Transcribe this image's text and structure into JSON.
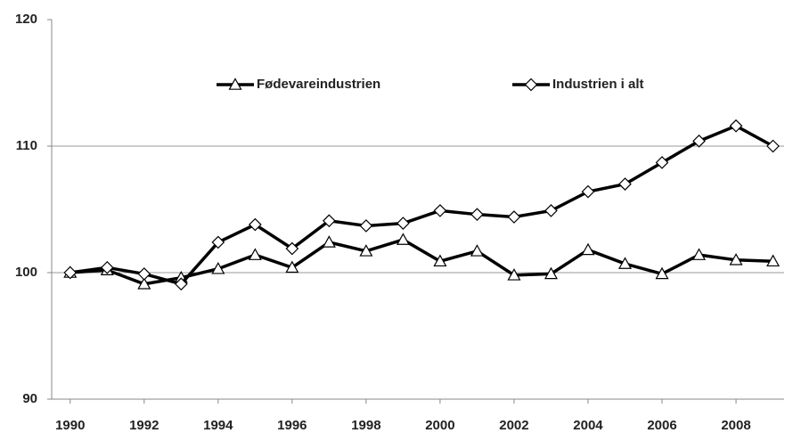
{
  "chart_data": {
    "type": "line",
    "x": [
      1990,
      1991,
      1992,
      1993,
      1994,
      1995,
      1996,
      1997,
      1998,
      1999,
      2000,
      2001,
      2002,
      2003,
      2004,
      2005,
      2006,
      2007,
      2008,
      2009
    ],
    "series": [
      {
        "name": "Fødevareindustrien",
        "color": "#000000",
        "marker": "triangle",
        "values": [
          100,
          100.2,
          99.1,
          99.6,
          100.3,
          101.4,
          100.4,
          102.4,
          101.7,
          102.6,
          100.9,
          101.7,
          99.8,
          99.9,
          101.8,
          100.7,
          99.9,
          101.4,
          101.0,
          100.9
        ]
      },
      {
        "name": "Industrien i alt",
        "color": "#000000",
        "marker": "diamond",
        "values": [
          100,
          100.4,
          99.9,
          99.1,
          102.4,
          103.8,
          101.9,
          104.1,
          103.7,
          103.9,
          104.9,
          104.6,
          104.4,
          104.9,
          106.4,
          107.0,
          108.7,
          110.4,
          111.6,
          110.0
        ]
      }
    ],
    "xlim": [
      1989.5,
      2009.3
    ],
    "xticks": [
      1990,
      1992,
      1994,
      1996,
      1998,
      2000,
      2002,
      2004,
      2006,
      2008
    ],
    "ylim": [
      90,
      120
    ],
    "yticks": [
      90,
      100,
      110,
      120
    ],
    "grid": true,
    "legend": "top"
  }
}
